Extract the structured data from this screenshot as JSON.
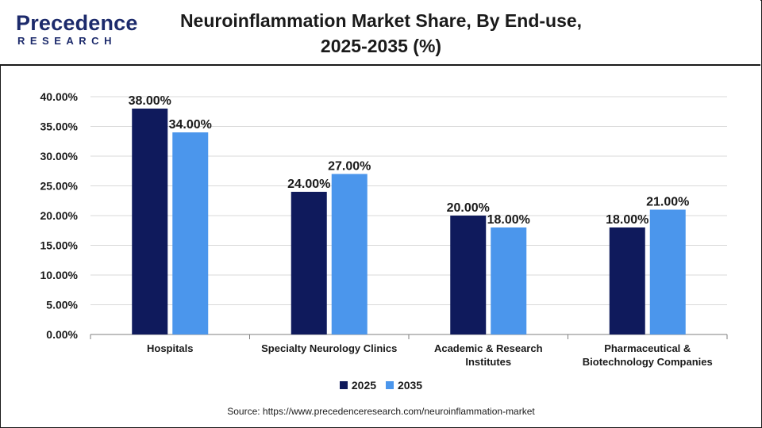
{
  "header": {
    "logo_word": "Precedence",
    "logo_sub": "RESEARCH",
    "title_line1": "Neuroinflammation Market Share, By End-use,",
    "title_line2": "2025-2035 (%)"
  },
  "source": "Source: https://www.precedenceresearch.com/neuroinflammation-market",
  "colors": {
    "brand": "#1c2a6b",
    "series_2025": "#0f1a5c",
    "series_2035": "#4b96ec",
    "grid": "#d9d9d9",
    "axis": "#7f7f7f"
  },
  "chart_data": {
    "type": "bar",
    "title": "Neuroinflammation Market Share, By End-use, 2025-2035 (%)",
    "categories": [
      [
        "Hospitals"
      ],
      [
        "Specialty Neurology Clinics"
      ],
      [
        "Academic & Research",
        "Institutes"
      ],
      [
        "Pharmaceutical &",
        "Biotechnology Companies"
      ]
    ],
    "series": [
      {
        "name": "2025",
        "values": [
          38,
          24,
          20,
          18
        ],
        "labels": [
          "38.00%",
          "24.00%",
          "20.00%",
          "18.00%"
        ]
      },
      {
        "name": "2035",
        "values": [
          34,
          27,
          18,
          21
        ],
        "labels": [
          "34.00%",
          "27.00%",
          "18.00%",
          "21.00%"
        ]
      }
    ],
    "y_ticks": [
      "0.00%",
      "5.00%",
      "10.00%",
      "15.00%",
      "20.00%",
      "25.00%",
      "30.00%",
      "35.00%",
      "40.00%"
    ],
    "ylim": [
      0,
      40
    ],
    "grid": true,
    "legend_position": "bottom-center"
  }
}
